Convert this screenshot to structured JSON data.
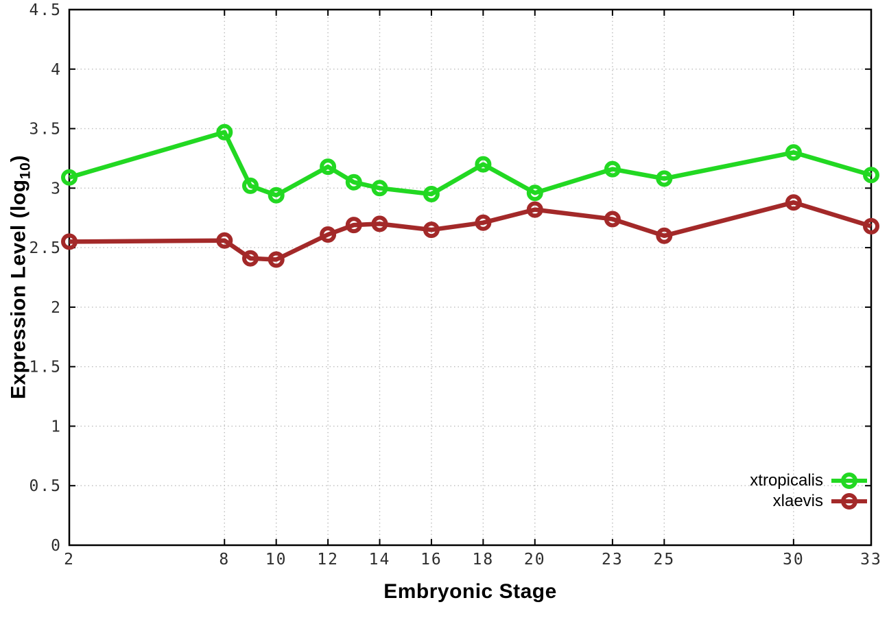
{
  "chart_data": {
    "type": "line",
    "title": "",
    "xlabel": "Embryonic Stage",
    "ylabel": "Expression Level (log10)",
    "ylabel_parts": {
      "main": "Expression Level (log",
      "sub": "10",
      "close": ")"
    },
    "x": [
      2,
      8,
      9,
      10,
      12,
      13,
      14,
      16,
      18,
      20,
      23,
      25,
      30,
      33
    ],
    "xticks": [
      2,
      8,
      10,
      12,
      14,
      16,
      18,
      20,
      23,
      25,
      30,
      33
    ],
    "yticks": [
      0,
      0.5,
      1,
      1.5,
      2,
      2.5,
      3,
      3.5,
      4,
      4.5
    ],
    "xlim": [
      2,
      33
    ],
    "ylim": [
      0,
      4.5
    ],
    "grid": true,
    "legend_position": "bottom-right",
    "colors": {
      "border": "#000000",
      "grid": "#bdbdbd",
      "tick_label": "#2e2e2e"
    },
    "series": [
      {
        "name": "xtropicalis",
        "color": "#22d822",
        "values": [
          3.09,
          3.47,
          3.02,
          2.94,
          3.18,
          3.05,
          3.0,
          2.95,
          3.2,
          2.96,
          3.16,
          3.08,
          3.3,
          3.11
        ]
      },
      {
        "name": "xlaevis",
        "color": "#a32929",
        "values": [
          2.55,
          2.56,
          2.41,
          2.4,
          2.61,
          2.69,
          2.7,
          2.65,
          2.71,
          2.82,
          2.74,
          2.6,
          2.88,
          2.68
        ]
      }
    ]
  }
}
